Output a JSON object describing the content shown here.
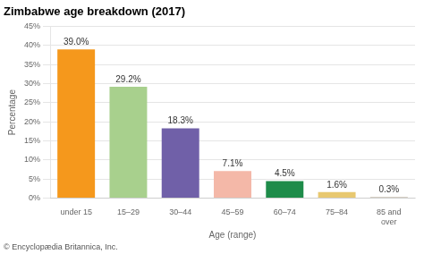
{
  "chart_data": {
    "type": "bar",
    "title": "Zimbabwe age breakdown (2017)",
    "footer": "© Encyclopædia Britannica, Inc.",
    "xlabel": "Age (range)",
    "ylabel": "Percentage",
    "categories": [
      "under 15",
      "15–29",
      "30–44",
      "45–59",
      "60–74",
      "75–84",
      "85 and\nover"
    ],
    "values": [
      39.0,
      29.2,
      18.3,
      7.1,
      4.5,
      1.6,
      0.3
    ],
    "value_labels": [
      "39.0%",
      "29.2%",
      "18.3%",
      "7.1%",
      "4.5%",
      "1.6%",
      "0.3%"
    ],
    "data_labels": true,
    "colors": [
      "#f5981c",
      "#a8d08d",
      "#7060a8",
      "#f4b8a8",
      "#1e8c4a",
      "#e8c870",
      "#c8bfb0"
    ],
    "ylim": [
      0,
      45
    ],
    "yticks": [
      {
        "value": 0,
        "label": "0%"
      },
      {
        "value": 5,
        "label": "5%"
      },
      {
        "value": 10,
        "label": "10%"
      },
      {
        "value": 15,
        "label": "15%"
      },
      {
        "value": 20,
        "label": "20%"
      },
      {
        "value": 25,
        "label": "25%"
      },
      {
        "value": 30,
        "label": "30%"
      },
      {
        "value": 35,
        "label": "35%"
      },
      {
        "value": 40,
        "label": "40%"
      },
      {
        "value": 45,
        "label": "45%"
      }
    ],
    "grid": true
  }
}
